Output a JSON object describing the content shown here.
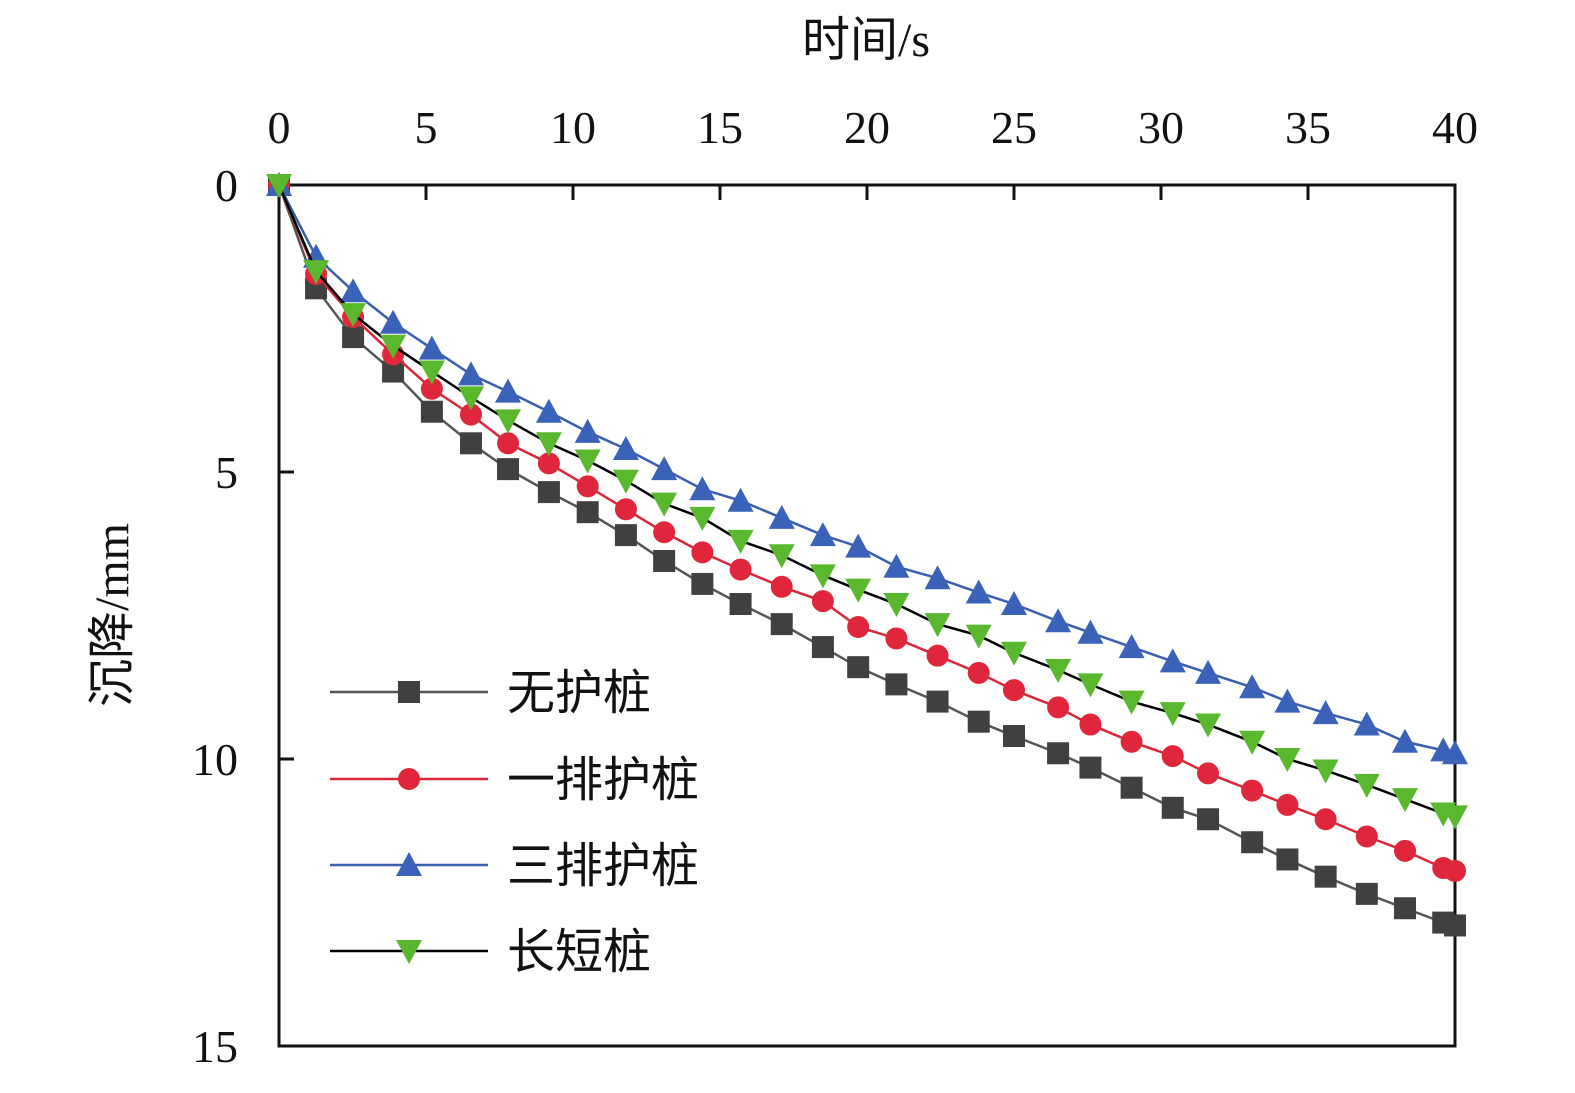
{
  "chart_data": {
    "type": "line",
    "xlabel": "时间/s",
    "ylabel": "沉降/mm",
    "xlim": [
      0,
      40
    ],
    "ylim": [
      0,
      15
    ],
    "x_axis_position": "top",
    "y_axis_inverted": true,
    "xticks": [
      0,
      5,
      10,
      15,
      20,
      25,
      30,
      35,
      40
    ],
    "yticks": [
      0,
      5,
      10,
      15
    ],
    "grid": false,
    "legend_placement": "lower-left",
    "x": [
      0,
      1.26,
      2.52,
      3.88,
      5.2,
      6.53,
      7.79,
      9.18,
      10.5,
      11.8,
      13.1,
      14.4,
      15.7,
      17.1,
      18.5,
      19.7,
      21.0,
      22.4,
      23.8,
      25.0,
      26.5,
      27.6,
      29.0,
      30.4,
      31.6,
      33.1,
      34.3,
      35.6,
      37.0,
      38.3,
      39.6,
      40
    ],
    "series": [
      {
        "name": "无护桩",
        "marker": "square",
        "line_color": "#555555",
        "marker_color": "#404040",
        "values": [
          0,
          1.8,
          2.65,
          3.25,
          3.95,
          4.5,
          4.95,
          5.35,
          5.7,
          6.1,
          6.55,
          6.95,
          7.3,
          7.65,
          8.05,
          8.4,
          8.7,
          9.0,
          9.35,
          9.6,
          9.9,
          10.15,
          10.5,
          10.85,
          11.05,
          11.45,
          11.75,
          12.05,
          12.35,
          12.6,
          12.85,
          12.9
        ]
      },
      {
        "name": "一排护桩",
        "marker": "circle",
        "line_color": "#d8283a",
        "marker_color": "#e0263a",
        "values": [
          0,
          1.55,
          2.3,
          2.95,
          3.55,
          4.0,
          4.5,
          4.85,
          5.25,
          5.65,
          6.05,
          6.4,
          6.7,
          7.0,
          7.25,
          7.7,
          7.9,
          8.2,
          8.5,
          8.8,
          9.1,
          9.4,
          9.7,
          9.95,
          10.25,
          10.55,
          10.8,
          11.05,
          11.35,
          11.6,
          11.9,
          11.95
        ]
      },
      {
        "name": "三排护桩",
        "marker": "triangle-up",
        "line_color": "#3a5fb0",
        "marker_color": "#3a62b8",
        "values": [
          0,
          1.25,
          1.85,
          2.4,
          2.85,
          3.3,
          3.6,
          3.95,
          4.3,
          4.6,
          4.95,
          5.3,
          5.5,
          5.8,
          6.1,
          6.3,
          6.65,
          6.85,
          7.1,
          7.3,
          7.6,
          7.8,
          8.05,
          8.3,
          8.5,
          8.75,
          9.0,
          9.2,
          9.4,
          9.7,
          9.85,
          9.9
        ]
      },
      {
        "name": "长短桩",
        "marker": "triangle-down",
        "line_color": "#000000",
        "marker_color": "#5ab82e",
        "values": [
          0,
          1.5,
          2.25,
          2.8,
          3.25,
          3.7,
          4.1,
          4.5,
          4.8,
          5.15,
          5.55,
          5.8,
          6.2,
          6.45,
          6.8,
          7.05,
          7.3,
          7.65,
          7.85,
          8.15,
          8.45,
          8.7,
          9.0,
          9.2,
          9.4,
          9.7,
          10.0,
          10.2,
          10.45,
          10.7,
          10.95,
          11.0
        ]
      }
    ]
  }
}
